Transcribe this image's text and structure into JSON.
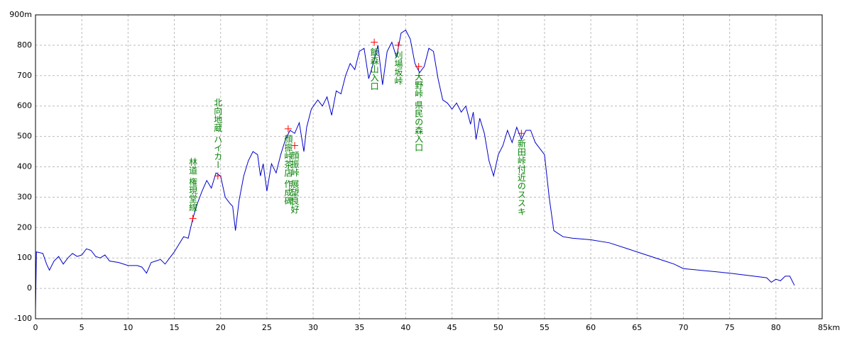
{
  "chart_data": {
    "type": "line",
    "xlim": [
      0,
      85
    ],
    "xticks": [
      0,
      5,
      10,
      15,
      20,
      25,
      30,
      35,
      40,
      45,
      50,
      55,
      60,
      65,
      70,
      75,
      80,
      {
        "value": 85,
        "label": "85km"
      }
    ],
    "ylim": [
      -100,
      900
    ],
    "yticks": [
      -100,
      0,
      100,
      200,
      300,
      400,
      500,
      600,
      700,
      800,
      {
        "value": 900,
        "label": "900m"
      }
    ],
    "grid": true,
    "color": "#0000cc",
    "x": [
      0,
      0.1,
      0.8,
      1.2,
      1.5,
      2,
      2.5,
      3,
      3.5,
      4,
      4.5,
      5,
      5.5,
      6,
      6.5,
      7,
      7.5,
      8,
      9,
      10,
      11,
      11.5,
      12,
      12.5,
      13,
      13.5,
      14,
      14.5,
      15,
      15.5,
      16,
      16.5,
      17,
      17.5,
      18,
      18.5,
      19,
      19.5,
      20,
      20.5,
      21,
      21.3,
      21.6,
      22,
      22.5,
      23,
      23.5,
      24,
      24.3,
      24.6,
      25,
      25.5,
      26,
      26.5,
      27,
      27.5,
      28,
      28.5,
      29,
      29.3,
      29.8,
      30.5,
      31,
      31.5,
      32,
      32.5,
      33,
      33.5,
      34,
      34.5,
      35,
      35.5,
      36,
      36.5,
      37,
      37.5,
      38,
      38.5,
      39,
      39.5,
      40,
      40.5,
      41,
      41.5,
      42,
      42.5,
      43,
      43.5,
      44,
      44.5,
      45,
      45.5,
      46,
      46.5,
      47,
      47.3,
      47.6,
      48,
      48.5,
      49,
      49.5,
      50,
      50.5,
      51,
      51.5,
      52,
      52.5,
      53,
      53.5,
      54,
      55,
      55.5,
      56,
      57,
      58,
      60,
      62,
      65,
      68,
      69,
      70,
      75,
      79,
      79.5,
      80,
      80.5,
      81,
      81.5,
      82
    ],
    "values": [
      -70,
      120,
      115,
      80,
      60,
      90,
      105,
      80,
      100,
      115,
      105,
      110,
      130,
      125,
      105,
      100,
      110,
      90,
      85,
      75,
      75,
      70,
      50,
      85,
      90,
      95,
      80,
      100,
      120,
      145,
      170,
      165,
      230,
      280,
      320,
      355,
      330,
      380,
      370,
      300,
      280,
      270,
      190,
      290,
      370,
      420,
      450,
      440,
      370,
      410,
      320,
      410,
      380,
      440,
      490,
      520,
      510,
      545,
      450,
      530,
      590,
      620,
      600,
      630,
      570,
      650,
      640,
      700,
      740,
      720,
      780,
      790,
      690,
      740,
      800,
      670,
      780,
      810,
      760,
      840,
      850,
      820,
      740,
      710,
      730,
      790,
      780,
      690,
      620,
      610,
      590,
      610,
      580,
      600,
      540,
      580,
      490,
      560,
      510,
      420,
      370,
      440,
      470,
      520,
      480,
      530,
      490,
      520,
      520,
      480,
      440,
      300,
      190,
      170,
      165,
      160,
      150,
      120,
      90,
      80,
      65,
      50,
      35,
      20,
      30,
      25,
      40,
      40,
      10
    ],
    "annotations": [
      {
        "text": "林道 権現堂線",
        "x": 17,
        "y": 230
      },
      {
        "text": "北向地蔵 ハイカー",
        "x": 19.7,
        "y": 370
      },
      {
        "text": "顔振峠茶店 作成碑",
        "x": 27.3,
        "y": 525
      },
      {
        "text": "顔振峠 展望良好",
        "x": 28,
        "y": 470
      },
      {
        "text": "飯森山入口",
        "x": 36.6,
        "y": 810
      },
      {
        "text": "刈場坂峠",
        "x": 39.2,
        "y": 800
      },
      {
        "text": "大野峠 県民の森入口",
        "x": 41.4,
        "y": 730
      },
      {
        "text": "新田峠付近のススキ",
        "x": 52.5,
        "y": 510
      }
    ]
  }
}
